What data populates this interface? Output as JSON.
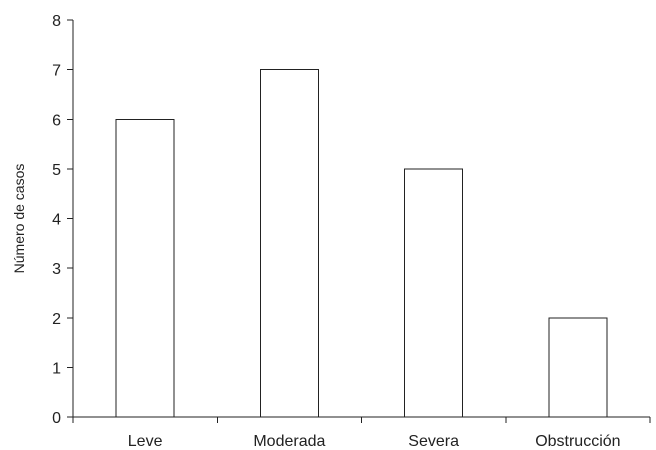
{
  "chart_data": {
    "type": "bar",
    "categories": [
      "Leve",
      "Moderada",
      "Severa",
      "Obstrucción"
    ],
    "values": [
      6,
      7,
      5,
      2
    ],
    "ylabel": "Número de casos",
    "ylim": [
      0,
      8
    ],
    "yticks": [
      "0",
      "1",
      "2",
      "3",
      "4",
      "5",
      "6",
      "7",
      "8"
    ],
    "grid": false,
    "legend": "none",
    "colors": {
      "bar_fill": "#ffffff",
      "bar_stroke": "#222222",
      "axis": "#222222"
    }
  }
}
